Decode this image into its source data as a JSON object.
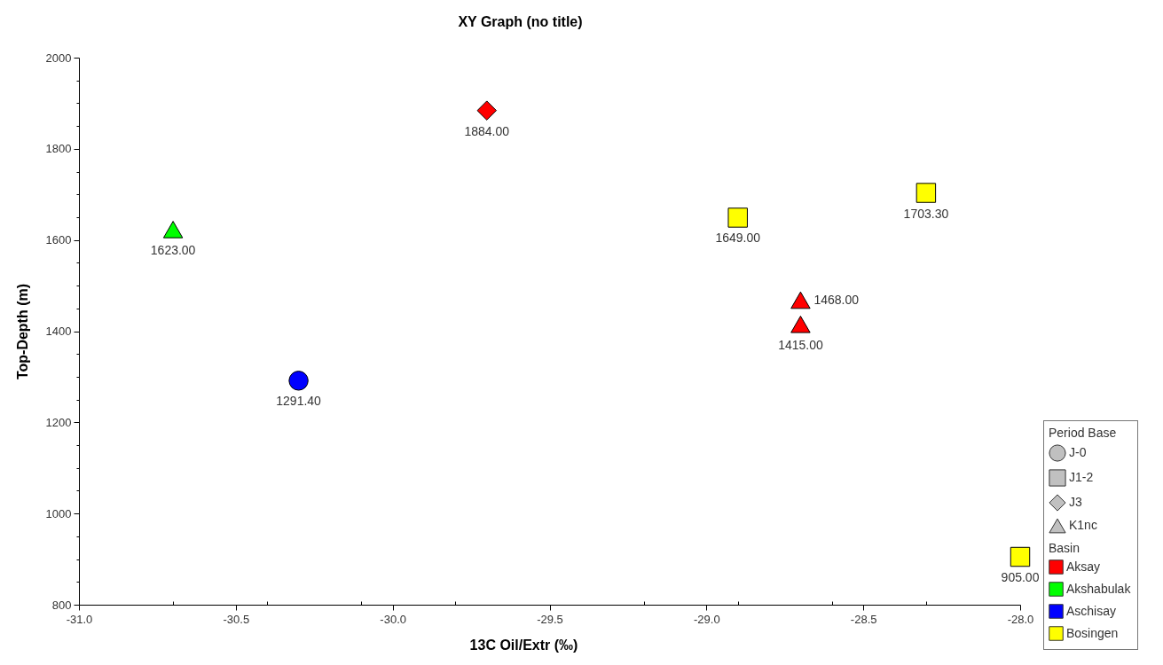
{
  "chart_data": {
    "type": "scatter",
    "title": "XY Graph (no title)",
    "xlabel": "13C Oil/Extr (‰)",
    "ylabel": "Top-Depth (m)",
    "xlim": [
      -31,
      -28
    ],
    "ylim": [
      800,
      2000
    ],
    "xticks": [
      {
        "value": -31,
        "label": "-31.0"
      },
      {
        "value": -30.7,
        "label": null
      },
      {
        "value": -30.5,
        "label": "-30.5"
      },
      {
        "value": -30.4,
        "label": null
      },
      {
        "value": -30.1,
        "label": null
      },
      {
        "value": -30,
        "label": "-30.0"
      },
      {
        "value": -29.8,
        "label": null
      },
      {
        "value": -29.5,
        "label": "-29.5"
      },
      {
        "value": -29.2,
        "label": null
      },
      {
        "value": -29,
        "label": "-29.0"
      },
      {
        "value": -28.9,
        "label": null
      },
      {
        "value": -28.6,
        "label": null
      },
      {
        "value": -28.5,
        "label": "-28.5"
      },
      {
        "value": -28.3,
        "label": null
      },
      {
        "value": -28,
        "label": "-28.0"
      }
    ],
    "yticks": [
      800,
      {
        "value": 850,
        "label": null
      },
      {
        "value": 900,
        "label": null
      },
      {
        "value": 950,
        "label": null
      },
      1000,
      {
        "value": 1050,
        "label": null
      },
      {
        "value": 1100,
        "label": null
      },
      {
        "value": 1150,
        "label": null
      },
      1200,
      {
        "value": 1250,
        "label": null
      },
      {
        "value": 1300,
        "label": null
      },
      {
        "value": 1350,
        "label": null
      },
      1400,
      {
        "value": 1450,
        "label": null
      },
      {
        "value": 1500,
        "label": null
      },
      {
        "value": 1550,
        "label": null
      },
      1600,
      {
        "value": 1650,
        "label": null
      },
      {
        "value": 1700,
        "label": null
      },
      {
        "value": 1750,
        "label": null
      },
      1800,
      {
        "value": 1850,
        "label": null
      },
      {
        "value": 1900,
        "label": null
      },
      {
        "value": 1950,
        "label": null
      },
      2000
    ],
    "legend": "bottom right",
    "legend_title": [
      "Period Base",
      "Basin"
    ],
    "series": [
      {
        "name": "Aksay",
        "color": "#ff0000",
        "marker": [
          "diamond",
          "triangle",
          "triangle"
        ],
        "x": [
          -29.7,
          -28.7,
          -28.7
        ],
        "values": [
          1884,
          1468,
          1415
        ],
        "value_labels": [
          "1884.00",
          "1468.00",
          "1415.00"
        ]
      },
      {
        "name": "Akshabulak",
        "color": "#00ff00",
        "marker": "triangle",
        "x": [
          -30.7
        ],
        "values": [
          1623
        ],
        "value_labels": [
          "1623.00"
        ]
      },
      {
        "name": "Aschisay",
        "color": "#0000ff",
        "marker": "circle",
        "x": [
          -30.3
        ],
        "values": [
          1291.4
        ],
        "value_labels": [
          "1291.40"
        ]
      },
      {
        "name": "Bosingen",
        "color": "#ffff00",
        "marker": "square",
        "x": [
          -28.9,
          -28.3,
          -28
        ],
        "values": [
          1649,
          1703.3,
          905
        ],
        "value_labels": [
          "1649.00",
          "1703.30",
          "905.00"
        ]
      },
      {
        "name": "J-0",
        "color": "#c0c0c0",
        "marker": "circle"
      },
      {
        "name": "J1-2",
        "color": "#c0c0c0",
        "marker": "square"
      },
      {
        "name": "J3",
        "color": "#c0c0c0",
        "marker": "diamond"
      },
      {
        "name": "K1nc",
        "color": "#c0c0c0",
        "marker": "triangle"
      }
    ]
  }
}
